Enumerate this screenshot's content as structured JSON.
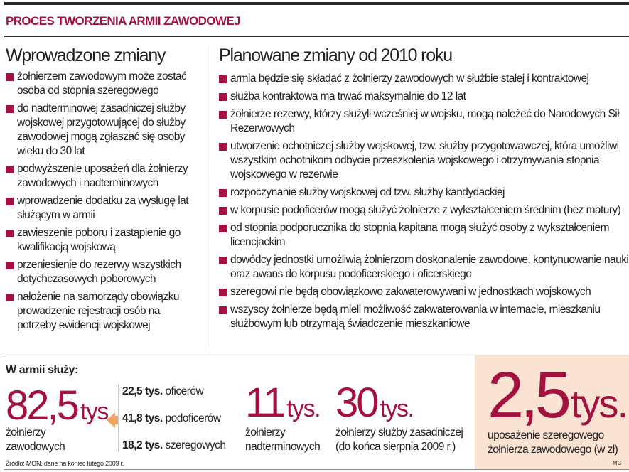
{
  "title": "PROCES TWORZENIA ARMII ZAWODOWEJ",
  "left": {
    "heading": "Wprowadzone zmiany",
    "items": [
      "żołnierzem zawodowym może zostać osoba od stopnia szeregowego",
      "do nadterminowej zasadniczej służby wojskowej przygotowującej do służby zawodowej mogą zgłaszać się osoby wieku do 30 lat",
      "podwyższenie uposażeń dla żołnierzy zawodowych i nadterminowych",
      "wprowadzenie dodatku za wysługę lat służącym w armii",
      "zawieszenie poboru i zastąpienie go kwalifikacją wojskową",
      "przeniesienie do rezerwy wszystkich dotychczasowych poborowych",
      "nałożenie na samorządy obowiązku prowadzenie rejestracji osób na potrzeby ewidencji wojskowej"
    ]
  },
  "right": {
    "heading": "Planowane zmiany od 2010 roku",
    "items": [
      "armia będzie się składać z żołnierzy zawodowych w służbie stałej i kontraktowej",
      "służba kontraktowa ma trwać maksymalnie do 12 lat",
      "żołnierze rezerwy, którzy służyli wcześniej w wojsku, mogą należeć do Narodowych Sił Rezerwowych",
      "utworzenie ochotniczej służby wojskowej, tzw. służby przygotowawczej, która umożliwi wszystkim ochotnikom odbycie przeszkolenia wojskowego i otrzymywania stopnia wojskowego w rezerwie",
      "rozpoczynanie służby wojskowej od tzw. służby kandydackiej",
      "w korpusie podoficerów mogą służyć żołnierze z wykształceniem średnim (bez matury)",
      "od stopnia podporucznika do stopnia kapitana mogą służyć osoby z wykształceniem licencjackim",
      "dowódcy jednostki umożliwią żołnierzom doskonalenie zawodowe, kontynuowanie nauki oraz awans do korpusu podoficerskiego i oficerskiego",
      "szeregowi nie będą obowiązkowo zakwaterowywani w jednostkach wojskowych",
      "wszyscy żołnierze będą mieli możliwość zakwaterowania w internacie, mieszkaniu służbowym lub otrzymają świadczenie mieszkaniowe"
    ]
  },
  "stats": {
    "label": "W armii służy:",
    "unit": "tys.",
    "professional": {
      "value": "82,5",
      "caption1": "żołnierzy",
      "caption2": "zawodowych"
    },
    "breakdown": [
      {
        "value": "22,5 tys.",
        "label": "oficerów"
      },
      {
        "value": "41,8 tys.",
        "label": "podoficerów"
      },
      {
        "value": "18,2 tys.",
        "label": "szeregowych"
      }
    ],
    "extended": {
      "value": "11",
      "caption1": "żołnierzy",
      "caption2": "nadterminowych"
    },
    "conscript": {
      "value": "30",
      "caption1": "żołnierzy służby zasadniczej",
      "caption2": "(do końca sierpnia 2009 r.)"
    },
    "salary": {
      "value": "2,5",
      "caption1": "uposażenie szeregowego",
      "caption2": "żołnierza zawodowego (w zł)"
    }
  },
  "source": "Źródło: MON, dane na koniec lutego 2009 r.",
  "credit": "MC",
  "colors": {
    "accent": "#a3123f",
    "highlight_bg": "#fbe3d4",
    "arrow": "#f4a460"
  }
}
